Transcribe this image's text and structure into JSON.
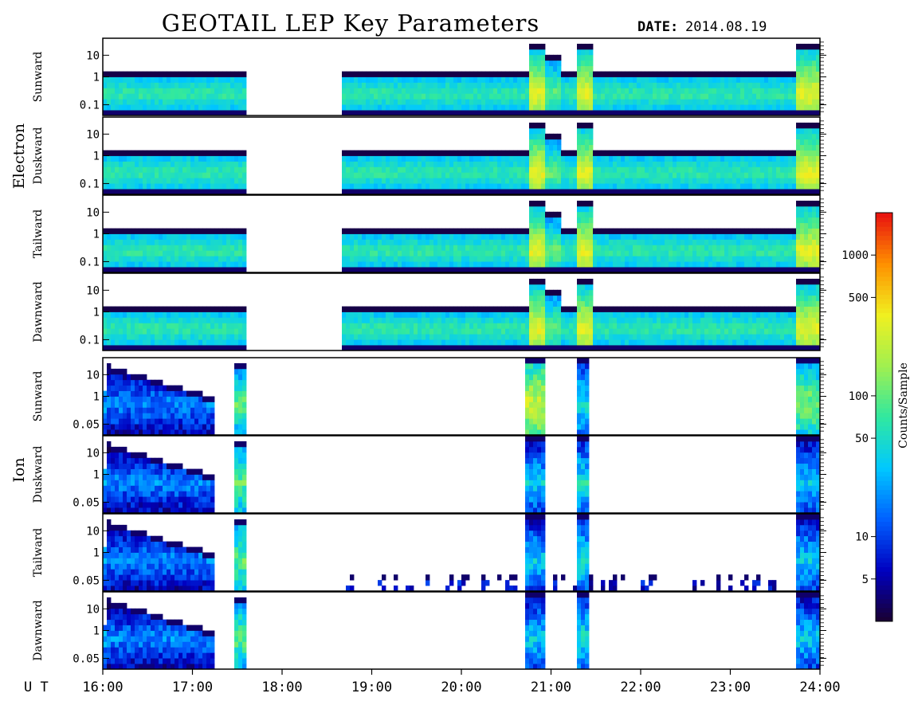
{
  "title": "GEOTAIL LEP Key Parameters",
  "date_label": "DATE:",
  "date_value": "2014.08.19",
  "ut_label": "U T",
  "colors": {
    "frame": "#000000",
    "background": "#ffffff"
  },
  "chart_data": {
    "type": "heatmap",
    "x_unit": "UT hours",
    "xlim": [
      16,
      24
    ],
    "x_ticks": [
      "16:00",
      "17:00",
      "18:00",
      "19:00",
      "20:00",
      "21:00",
      "22:00",
      "23:00",
      "24:00"
    ],
    "groups": [
      {
        "name": "Electron",
        "panels": [
          {
            "label": "Sunward",
            "y_ticks": [
              "10",
              "1",
              "0.1"
            ]
          },
          {
            "label": "Duskward",
            "y_ticks": [
              "10",
              "1",
              "0.1"
            ]
          },
          {
            "label": "Tailward",
            "y_ticks": [
              "10",
              "1",
              "0.1"
            ]
          },
          {
            "label": "Dawnward",
            "y_ticks": [
              "10",
              "1",
              "0.1"
            ]
          }
        ]
      },
      {
        "name": "Ion",
        "panels": [
          {
            "label": "Sunward",
            "y_ticks": [
              "10",
              "1",
              "0.05"
            ]
          },
          {
            "label": "Duskward",
            "y_ticks": [
              "10",
              "1",
              "0.05"
            ]
          },
          {
            "label": "Tailward",
            "y_ticks": [
              "10",
              "1",
              "0.05"
            ]
          },
          {
            "label": "Dawnward",
            "y_ticks": [
              "10",
              "1",
              "0.05"
            ]
          }
        ]
      }
    ],
    "data_gaps": [
      [
        17.6,
        18.65
      ]
    ],
    "colorbar": {
      "label": "Counts/Sample",
      "scale": "log",
      "range": [
        2.5,
        2000
      ],
      "ticks": [
        "1000",
        "500",
        "100",
        "50",
        "10",
        "5"
      ],
      "tick_values": [
        1000,
        500,
        100,
        50,
        10,
        5
      ],
      "colormap": [
        "#1a0030",
        "#0000c0",
        "#0060ff",
        "#00c8ff",
        "#30e8a0",
        "#a0f050",
        "#f0f020",
        "#ff9000",
        "#e81010"
      ]
    }
  }
}
